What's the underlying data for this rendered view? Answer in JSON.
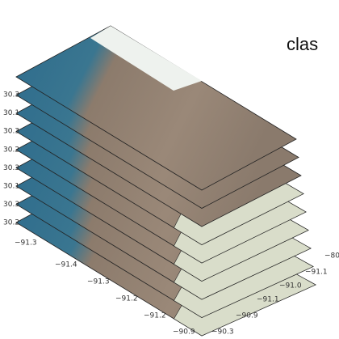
{
  "title": "clas",
  "y_labels": [
    "30.3",
    "30.1",
    "30.3",
    "30.2",
    "30.3",
    "30.1",
    "30.3",
    "30.2"
  ],
  "x_labels": [
    "−91.3",
    "−91.4",
    "−91.3",
    "−91.2",
    "−91.2",
    "−90.9",
    "−90.3",
    "−90.9",
    "−91.1",
    "−91.0",
    "−91.1",
    "−80"
  ]
}
